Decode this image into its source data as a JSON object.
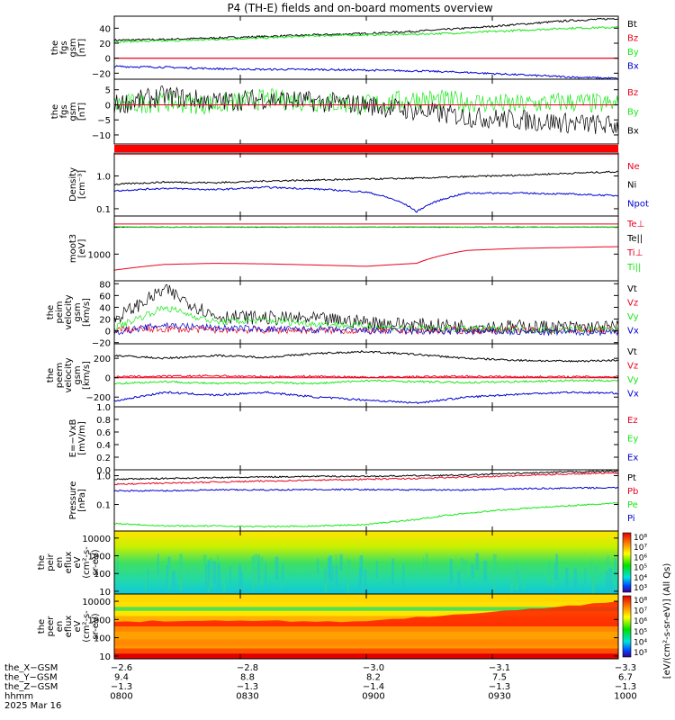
{
  "title": "P4 (TH-E) fields and on-board moments overview",
  "colors": {
    "black": "#000000",
    "red": "#e8001c",
    "green": "#17e817",
    "blue": "#0000d0"
  },
  "chart_data": [
    {
      "type": "line",
      "id": "fgs-gsm",
      "ylabel": [
        "the",
        "fgs",
        "gsm",
        "[nT]"
      ],
      "yticks": [
        "40",
        "20",
        "0",
        "−20"
      ],
      "ytick_values": [
        40,
        20,
        0,
        -20
      ],
      "ylim": [
        -28,
        56
      ],
      "zero_line": 0,
      "series": [
        {
          "name": "Bt",
          "color": "black",
          "values": [
            24,
            25,
            27,
            29,
            31,
            33,
            36,
            40,
            45,
            50,
            53
          ]
        },
        {
          "name": "Bz",
          "color": "red",
          "values": [
            0,
            0,
            0,
            0,
            0,
            0,
            0,
            0,
            0,
            0,
            0
          ]
        },
        {
          "name": "By",
          "color": "green",
          "values": [
            22,
            23,
            25,
            27,
            30,
            31,
            32,
            34,
            37,
            40,
            41
          ]
        },
        {
          "name": "Bx",
          "color": "blue",
          "values": [
            -11,
            -12,
            -14,
            -15,
            -15,
            -16,
            -17,
            -19,
            -22,
            -25,
            -27
          ]
        }
      ]
    },
    {
      "type": "line",
      "id": "fgs-dsl",
      "ylabel": [
        "the",
        "fgs",
        "gsm",
        "[nT]"
      ],
      "yticks": [
        "5",
        "0",
        "−5",
        "−10"
      ],
      "ytick_values": [
        5,
        0,
        -5,
        -10
      ],
      "ylim": [
        -13,
        8.5
      ],
      "zero_line": 0,
      "series": [
        {
          "name": "Bz",
          "color": "red",
          "values": [
            0,
            0,
            0,
            0,
            0,
            0,
            0,
            0,
            0,
            0,
            0
          ]
        },
        {
          "name": "By",
          "color": "green",
          "values": [
            0,
            1,
            0,
            2,
            1,
            0,
            2,
            1,
            0,
            1,
            0
          ]
        },
        {
          "name": "Bx",
          "color": "black",
          "values": [
            0,
            3,
            1,
            2,
            1,
            0,
            -2,
            -4,
            -5,
            -6,
            -7
          ]
        }
      ]
    },
    {
      "type": "line",
      "id": "density",
      "log": true,
      "ylabel": [
        "Density",
        "[cm⁻³]"
      ],
      "yticks": [
        "1.0",
        "0.1"
      ],
      "ytick_values": [
        1.0,
        0.1
      ],
      "ylim": [
        0.06,
        5
      ],
      "series": [
        {
          "name": "Ne",
          "color": "red",
          "values": [
            4.6,
            4.6,
            4.6,
            4.6,
            4.6,
            4.6,
            4.6,
            4.6,
            4.6,
            4.6,
            4.6
          ]
        },
        {
          "name": "Ni",
          "color": "black",
          "values": [
            0.55,
            0.65,
            0.62,
            0.7,
            0.75,
            0.8,
            0.85,
            0.95,
            1.05,
            1.2,
            1.35
          ]
        },
        {
          "name": "Npot",
          "color": "blue",
          "values": [
            0.35,
            0.42,
            0.38,
            0.45,
            0.4,
            0.32,
            0.08,
            0.3,
            0.3,
            0.28,
            0.25
          ]
        }
      ]
    },
    {
      "type": "line",
      "id": "temperature",
      "log": true,
      "ylabel": [
        "moot3",
        "[eV]"
      ],
      "yticks": [
        "1000"
      ],
      "ytick_values": [
        1000
      ],
      "ylim": [
        150,
        15000
      ],
      "series": [
        {
          "name": "Te⊥",
          "color": "red",
          "values": [
            8500,
            8500,
            8500,
            8500,
            8500,
            8500,
            8500,
            8500,
            8500,
            8500,
            8500
          ]
        },
        {
          "name": "Te||",
          "color": "black",
          "values": [
            6800,
            6800,
            6800,
            6800,
            6800,
            6800,
            6800,
            6800,
            6800,
            6800,
            6800
          ]
        },
        {
          "name": "Ti⊥",
          "color": "red",
          "values": [
            320,
            480,
            520,
            500,
            460,
            420,
            520,
            1300,
            1500,
            1600,
            1700
          ]
        },
        {
          "name": "Ti||",
          "color": "green",
          "values": [
            7000,
            6700,
            6800,
            6900,
            6800,
            6800,
            6900,
            6800,
            6700,
            6800,
            6900
          ]
        }
      ]
    },
    {
      "type": "line",
      "id": "peim-velocity",
      "ylabel": [
        "the",
        "peim",
        "velocity",
        "gsm",
        "[km/s]"
      ],
      "yticks": [
        "80",
        "60",
        "40",
        "20",
        "0",
        "−20"
      ],
      "ytick_values": [
        80,
        60,
        40,
        20,
        0,
        -20
      ],
      "ylim": [
        -22,
        85
      ],
      "zero_line": 0,
      "series": [
        {
          "name": "Vt",
          "color": "black",
          "values": [
            20,
            70,
            25,
            22,
            20,
            15,
            10,
            8,
            7,
            6,
            6
          ]
        },
        {
          "name": "Vz",
          "color": "red",
          "values": [
            2,
            3,
            2,
            1,
            1,
            0,
            0,
            1,
            1,
            1,
            1
          ]
        },
        {
          "name": "Vy",
          "color": "green",
          "values": [
            5,
            40,
            15,
            18,
            12,
            8,
            4,
            3,
            2,
            2,
            2
          ]
        },
        {
          "name": "Vx",
          "color": "blue",
          "values": [
            -2,
            10,
            5,
            3,
            2,
            0,
            -1,
            -1,
            -2,
            -2,
            -2
          ]
        }
      ]
    },
    {
      "type": "line",
      "id": "peem-velocity",
      "ylabel": [
        "the",
        "peem",
        "velocity",
        "gsm",
        "[km/s]"
      ],
      "yticks": [
        "200",
        "0",
        "−200"
      ],
      "ytick_values": [
        200,
        0,
        -200
      ],
      "ylim": [
        -300,
        350
      ],
      "zero_line": 0,
      "series": [
        {
          "name": "Vt",
          "color": "black",
          "values": [
            230,
            200,
            230,
            210,
            250,
            270,
            240,
            200,
            180,
            170,
            180
          ]
        },
        {
          "name": "Vz",
          "color": "red",
          "values": [
            10,
            15,
            20,
            10,
            15,
            5,
            10,
            15,
            10,
            10,
            10
          ]
        },
        {
          "name": "Vy",
          "color": "green",
          "values": [
            -60,
            -40,
            -60,
            -50,
            -60,
            -30,
            -40,
            -50,
            -40,
            -30,
            -30
          ]
        },
        {
          "name": "Vx",
          "color": "blue",
          "values": [
            -240,
            -150,
            -180,
            -150,
            -200,
            -230,
            -260,
            -200,
            -170,
            -150,
            -160
          ]
        }
      ]
    },
    {
      "type": "line",
      "id": "efield",
      "ylabel": [
        "E=−VxB",
        "[mV/m]"
      ],
      "yticks": [
        "1.0",
        "0.8",
        "0.6",
        "0.4",
        "0.2",
        "0.0"
      ],
      "ytick_values": [
        1.0,
        0.8,
        0.6,
        0.4,
        0.2,
        0.0
      ],
      "ylim": [
        0,
        1.0
      ],
      "series": [
        {
          "name": "Ez",
          "color": "red",
          "values": []
        },
        {
          "name": "Ey",
          "color": "green",
          "values": []
        },
        {
          "name": "Ex",
          "color": "blue",
          "values": []
        }
      ]
    },
    {
      "type": "line",
      "id": "pressure",
      "log": true,
      "ylabel": [
        "Pressure",
        "[nPa]"
      ],
      "yticks": [
        "1.0",
        "0.1"
      ],
      "ytick_values": [
        1.0,
        0.1
      ],
      "ylim": [
        0.012,
        1.6
      ],
      "series": [
        {
          "name": "Pt",
          "color": "black",
          "values": [
            0.75,
            0.8,
            0.85,
            0.9,
            0.95,
            0.95,
            1.0,
            1.05,
            1.2,
            1.35,
            1.45
          ]
        },
        {
          "name": "Pb",
          "color": "red",
          "values": [
            0.5,
            0.55,
            0.6,
            0.65,
            0.7,
            0.75,
            0.8,
            0.9,
            1.0,
            1.15,
            1.25
          ]
        },
        {
          "name": "Pe",
          "color": "green",
          "values": [
            0.022,
            0.018,
            0.018,
            0.017,
            0.018,
            0.02,
            0.03,
            0.05,
            0.07,
            0.09,
            0.11
          ]
        },
        {
          "name": "Pi",
          "color": "blue",
          "values": [
            0.3,
            0.3,
            0.32,
            0.32,
            0.33,
            0.33,
            0.32,
            0.32,
            0.35,
            0.37,
            0.38
          ]
        }
      ]
    },
    {
      "type": "heatmap",
      "id": "peir-spectrogram",
      "log": true,
      "ylabel": [
        "the",
        "peir",
        "en",
        "eflux",
        "eV",
        "(cm²-s-",
        "sr-eV)"
      ],
      "yticks": [
        "10000",
        "1000",
        "100",
        "10"
      ],
      "ytick_values": [
        10000,
        1000,
        100,
        10
      ],
      "ylim": [
        7,
        25000
      ],
      "colorbar": {
        "ticks": [
          "10⁸",
          "10⁷",
          "10⁶",
          "10⁵",
          "10⁴",
          "10³"
        ]
      }
    },
    {
      "type": "heatmap",
      "id": "peer-spectrogram",
      "log": true,
      "ylabel": [
        "the",
        "peer",
        "en",
        "eflux",
        "eV",
        "(cm²-s-",
        "sr-eV)"
      ],
      "yticks": [
        "10000",
        "1000",
        "100",
        "10"
      ],
      "ytick_values": [
        10000,
        1000,
        100,
        10
      ],
      "ylim": [
        7,
        25000
      ],
      "colorbar": {
        "ticks": [
          "10⁸",
          "10⁷",
          "10⁶",
          "10⁵",
          "10⁴",
          "10³"
        ]
      }
    }
  ],
  "colorbar_label": "[eV/(cm²-s-sr-eV)] (All Qs)",
  "xaxis": {
    "row_labels": [
      "the_X−GSM",
      "the_Y−GSM",
      "the_Z−GSM",
      "hhmm",
      "2025 Mar 16"
    ],
    "columns": [
      {
        "values": [
          "−2.6",
          "9.4",
          "−1.3",
          "0800"
        ]
      },
      {
        "values": [
          "−2.8",
          "8.8",
          "−1.3",
          "0830"
        ]
      },
      {
        "values": [
          "−3.0",
          "8.2",
          "−1.4",
          "0900"
        ]
      },
      {
        "values": [
          "−3.1",
          "7.5",
          "−1.3",
          "0930"
        ]
      },
      {
        "values": [
          "−3.3",
          "6.7",
          "−1.3",
          "1000"
        ]
      }
    ]
  }
}
